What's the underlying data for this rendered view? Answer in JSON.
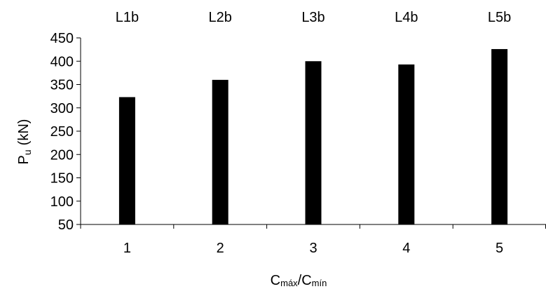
{
  "chart_data": {
    "type": "bar",
    "categories": [
      "1",
      "2",
      "3",
      "4",
      "5"
    ],
    "top_labels": [
      "L1b",
      "L2b",
      "L3b",
      "L4b",
      "L5b"
    ],
    "values": [
      323,
      360,
      400,
      393,
      426
    ],
    "ylim": [
      50,
      450
    ],
    "yticks": [
      50,
      100,
      150,
      200,
      250,
      300,
      350,
      400,
      450
    ],
    "ylabel": {
      "main": "P",
      "sub": "u",
      "unit": "(kN)"
    },
    "xlabel": {
      "part1": "C",
      "sub1": "máx",
      "sep": "/C",
      "sub2": "mín"
    },
    "bar_color": "#000000",
    "grid": false,
    "legend": "none"
  }
}
